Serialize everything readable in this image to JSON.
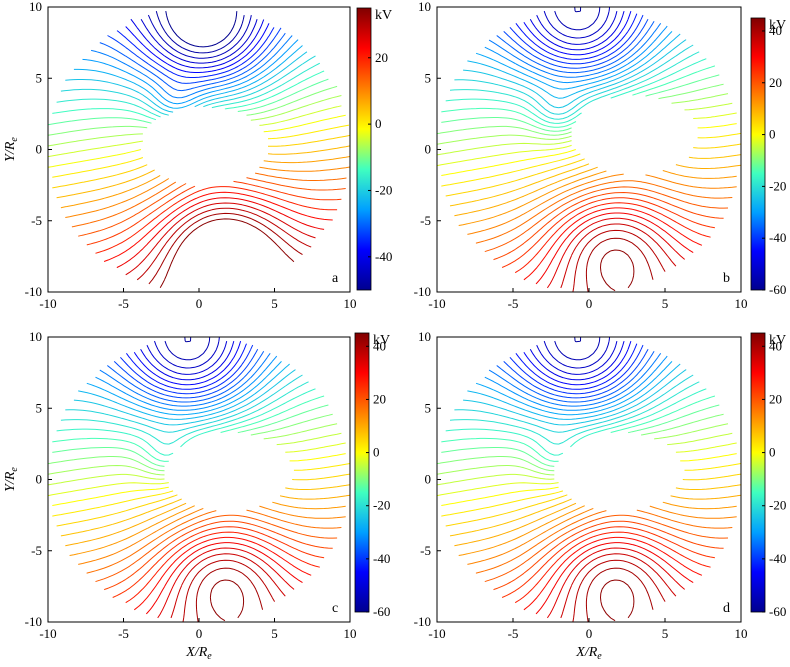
{
  "chart_data": [
    {
      "type": "contour",
      "panel_label": "a",
      "xlim": [
        -10,
        10
      ],
      "ylim": [
        -10,
        10
      ],
      "xticks": [
        "-10",
        "-5",
        "0",
        "5",
        "10"
      ],
      "yticks": [
        "10",
        "5",
        "0",
        "-5",
        "-10"
      ],
      "colorbar": {
        "unit": "kV",
        "ticks": [
          "20",
          "0",
          "-20",
          "-40"
        ],
        "range": [
          -50,
          35
        ]
      },
      "ylabel": "Y/Re",
      "xlabel": "",
      "features": {
        "pocket": [
          0.4,
          0.2
        ],
        "notch": [
          -1.5,
          3.0
        ],
        "low_center": [
          0.5,
          8.0
        ]
      }
    },
    {
      "type": "contour",
      "panel_label": "b",
      "xlim": [
        -10,
        10
      ],
      "ylim": [
        -10,
        10
      ],
      "xticks": [
        "-10",
        "-5",
        "0",
        "5",
        "10"
      ],
      "yticks": [
        "10",
        "5",
        "0",
        "-5",
        "-10"
      ],
      "colorbar": {
        "unit": "kV",
        "ticks": [
          "40",
          "20",
          "0",
          "-20",
          "-40",
          "-60"
        ],
        "range": [
          -60,
          45
        ]
      },
      "ylabel": "",
      "xlabel": "",
      "features": {
        "pocket": [
          3.0,
          1.0
        ],
        "notch": [
          -2.0,
          2.5
        ],
        "low_center": [
          -0.5,
          8.5
        ]
      }
    },
    {
      "type": "contour",
      "panel_label": "c",
      "xlim": [
        -10,
        10
      ],
      "ylim": [
        -10,
        10
      ],
      "xticks": [
        "-10",
        "-5",
        "0",
        "5",
        "10"
      ],
      "yticks": [
        "10",
        "5",
        "0",
        "-5",
        "-10"
      ],
      "colorbar": {
        "unit": "kV",
        "ticks": [
          "40",
          "20",
          "0",
          "-20",
          "-40",
          "-60"
        ],
        "range": [
          -60,
          45
        ]
      },
      "ylabel": "Y/Re",
      "xlabel": "X/Re",
      "features": {
        "pocket": [
          2.0,
          0.5
        ],
        "notch": [
          -2.0,
          1.5
        ],
        "low_center": [
          -0.5,
          8.5
        ]
      }
    },
    {
      "type": "contour",
      "panel_label": "d",
      "xlim": [
        -10,
        10
      ],
      "ylim": [
        -10,
        10
      ],
      "xticks": [
        "-10",
        "-5",
        "0",
        "5",
        "10"
      ],
      "yticks": [
        "10",
        "5",
        "0",
        "-5",
        "-10"
      ],
      "colorbar": {
        "unit": "kV",
        "ticks": [
          "40",
          "20",
          "0",
          "-20",
          "-40",
          "-60"
        ],
        "range": [
          -60,
          45
        ]
      },
      "ylabel": "",
      "xlabel": "X/Re",
      "features": {
        "pocket": [
          2.0,
          0.5
        ],
        "notch": [
          -2.0,
          1.5
        ],
        "low_center": [
          -0.5,
          8.5
        ]
      }
    }
  ],
  "colors": {
    "jet": [
      "#00008f",
      "#0000ff",
      "#00a0ff",
      "#40ffbf",
      "#ffff00",
      "#ff7f00",
      "#ff0000",
      "#800000"
    ]
  }
}
